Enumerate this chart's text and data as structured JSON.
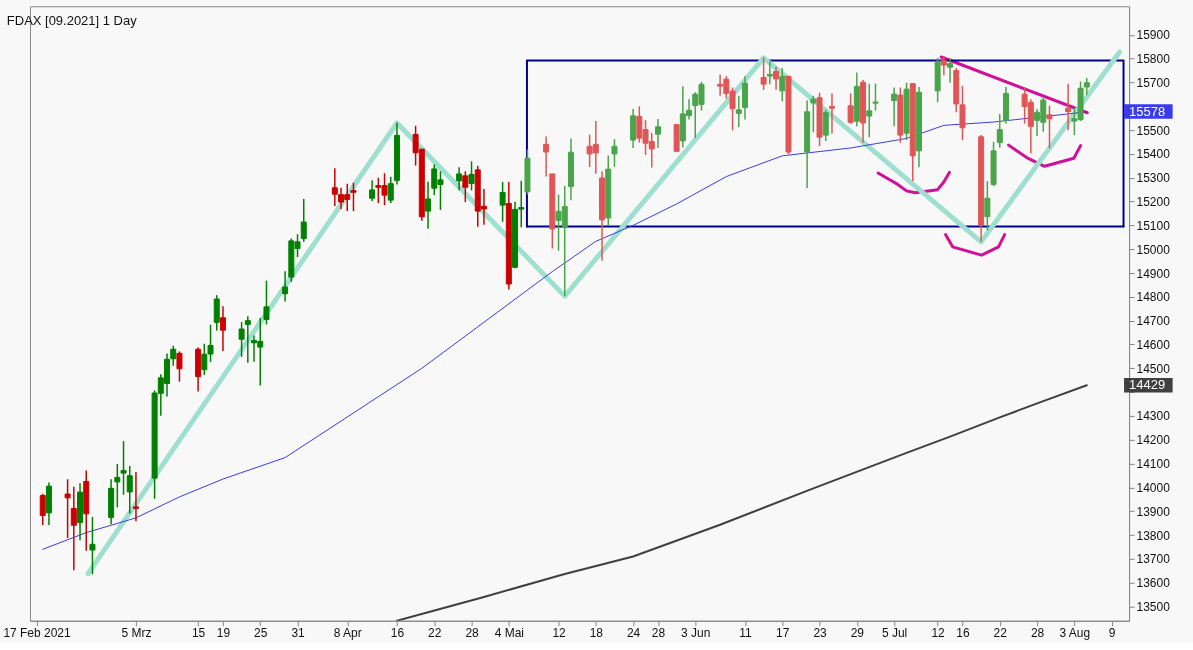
{
  "chart_data": {
    "type": "candlestick",
    "title": "FDAX [09.2021] 1 Day",
    "x": [
      "2021-02-18",
      "2021-02-19",
      "2021-02-22",
      "2021-02-23",
      "2021-02-24",
      "2021-02-25",
      "2021-02-26",
      "2021-03-01",
      "2021-03-02",
      "2021-03-03",
      "2021-03-04",
      "2021-03-05",
      "2021-03-08",
      "2021-03-09",
      "2021-03-10",
      "2021-03-11",
      "2021-03-12",
      "2021-03-15",
      "2021-03-16",
      "2021-03-17",
      "2021-03-18",
      "2021-03-19",
      "2021-03-22",
      "2021-03-23",
      "2021-03-24",
      "2021-03-25",
      "2021-03-26",
      "2021-03-29",
      "2021-03-30",
      "2021-03-31",
      "2021-04-01",
      "2021-04-06",
      "2021-04-07",
      "2021-04-08",
      "2021-04-09",
      "2021-04-12",
      "2021-04-13",
      "2021-04-14",
      "2021-04-15",
      "2021-04-16",
      "2021-04-19",
      "2021-04-20",
      "2021-04-21",
      "2021-04-22",
      "2021-04-23",
      "2021-04-26",
      "2021-04-27",
      "2021-04-28",
      "2021-04-29",
      "2021-04-30",
      "2021-05-03",
      "2021-05-04",
      "2021-05-05",
      "2021-05-06",
      "2021-05-07",
      "2021-05-10",
      "2021-05-11",
      "2021-05-12",
      "2021-05-13",
      "2021-05-14",
      "2021-05-17",
      "2021-05-18",
      "2021-05-19",
      "2021-05-20",
      "2021-05-21",
      "2021-05-24",
      "2021-05-25",
      "2021-05-26",
      "2021-05-27",
      "2021-05-28",
      "2021-05-31",
      "2021-06-01",
      "2021-06-02",
      "2021-06-03",
      "2021-06-04",
      "2021-06-07",
      "2021-06-08",
      "2021-06-09",
      "2021-06-10",
      "2021-06-11",
      "2021-06-14",
      "2021-06-15",
      "2021-06-16",
      "2021-06-17",
      "2021-06-18",
      "2021-06-21",
      "2021-06-22",
      "2021-06-23",
      "2021-06-24",
      "2021-06-25",
      "2021-06-28",
      "2021-06-29",
      "2021-06-30",
      "2021-07-01",
      "2021-07-02",
      "2021-07-05",
      "2021-07-06",
      "2021-07-07",
      "2021-07-08",
      "2021-07-09",
      "2021-07-12",
      "2021-07-13",
      "2021-07-14",
      "2021-07-15",
      "2021-07-16",
      "2021-07-19",
      "2021-07-20",
      "2021-07-21",
      "2021-07-22",
      "2021-07-23",
      "2021-07-26",
      "2021-07-27",
      "2021-07-28",
      "2021-07-29",
      "2021-07-30",
      "2021-08-02",
      "2021-08-03",
      "2021-08-04",
      "2021-08-05"
    ],
    "ohlc": [
      [
        13966,
        13973,
        13842,
        13882
      ],
      [
        13893,
        14020,
        13842,
        14005
      ],
      [
        13972,
        14034,
        13787,
        13956
      ],
      [
        13911,
        14003,
        13652,
        13841
      ],
      [
        13852,
        14017,
        13778,
        13980
      ],
      [
        14025,
        14071,
        13734,
        13889
      ],
      [
        13737,
        13876,
        13635,
        13761
      ],
      [
        13874,
        14034,
        13845,
        13996
      ],
      [
        14023,
        14098,
        13916,
        14042
      ],
      [
        14060,
        14194,
        13969,
        14071
      ],
      [
        13981,
        14090,
        13890,
        14049
      ],
      [
        13918,
        14065,
        13858,
        13912
      ],
      [
        14039,
        14407,
        13952,
        14396
      ],
      [
        14395,
        14475,
        14301,
        14460
      ],
      [
        14436,
        14562,
        14382,
        14538
      ],
      [
        14540,
        14595,
        14511,
        14580
      ],
      [
        14563,
        14571,
        14444,
        14498
      ],
      [
        14580,
        14587,
        14403,
        14465
      ],
      [
        14494,
        14603,
        14472,
        14559
      ],
      [
        14560,
        14683,
        14527,
        14596
      ],
      [
        14693,
        14807,
        14658,
        14791
      ],
      [
        14712,
        14760,
        14573,
        14660
      ],
      [
        14622,
        14694,
        14548,
        14665
      ],
      [
        14684,
        14719,
        14523,
        14700
      ],
      [
        14607,
        14638,
        14527,
        14617
      ],
      [
        14589,
        14711,
        14428,
        14613
      ],
      [
        14705,
        14868,
        14684,
        14758
      ],
      [
        14813,
        14907,
        14780,
        14841
      ],
      [
        14883,
        15045,
        14863,
        15035
      ],
      [
        15003,
        15063,
        14967,
        15031
      ],
      [
        15045,
        15211,
        15031,
        15114
      ],
      [
        15258,
        15340,
        15181,
        15231
      ],
      [
        15229,
        15258,
        15169,
        15198
      ],
      [
        15229,
        15275,
        15160,
        15209
      ],
      [
        15246,
        15279,
        15160,
        15239
      ],
      [
        15214,
        15290,
        15202,
        15249
      ],
      [
        15267,
        15300,
        15194,
        15260
      ],
      [
        15267,
        15319,
        15185,
        15227
      ],
      [
        15206,
        15304,
        15194,
        15275
      ],
      [
        15289,
        15531,
        15272,
        15478
      ],
      [
        15482,
        15518,
        15351,
        15405
      ],
      [
        15420,
        15420,
        15119,
        15136
      ],
      [
        15160,
        15283,
        15086,
        15211
      ],
      [
        15256,
        15356,
        15227,
        15337
      ],
      [
        15272,
        15327,
        15165,
        15291
      ],
      [
        15287,
        15344,
        15247,
        15316
      ],
      [
        15308,
        15327,
        15198,
        15260
      ],
      [
        15276,
        15369,
        15247,
        15314
      ],
      [
        15333,
        15349,
        15094,
        15160
      ],
      [
        15180,
        15253,
        15103,
        15169
      ],
      [
        15185,
        15282,
        15115,
        15238
      ],
      [
        15192,
        15282,
        14831,
        14854
      ],
      [
        14924,
        15199,
        14920,
        15167
      ],
      [
        15168,
        15287,
        15092,
        15175
      ],
      [
        15241,
        15419,
        15230,
        15382
      ],
      [
        15440,
        15473,
        15305,
        15408
      ],
      [
        15316,
        15316,
        15003,
        15085
      ],
      [
        15121,
        15229,
        14994,
        15159
      ],
      [
        15091,
        15265,
        14803,
        15179
      ],
      [
        15263,
        15465,
        15205,
        15407
      ],
      [
        15432,
        15481,
        15345,
        15400
      ],
      [
        15440,
        15538,
        15317,
        15404
      ],
      [
        15299,
        15327,
        14953,
        15123
      ],
      [
        15131,
        15393,
        15099,
        15336
      ],
      [
        15400,
        15462,
        15346,
        15432
      ],
      [
        15458,
        15589,
        15425,
        15560
      ],
      [
        15557,
        15600,
        15448,
        15466
      ],
      [
        15502,
        15542,
        15396,
        15445
      ],
      [
        15452,
        15488,
        15343,
        15421
      ],
      [
        15483,
        15547,
        15425,
        15514
      ],
      [
        15523,
        15525,
        15408,
        15411
      ],
      [
        15455,
        15684,
        15427,
        15568
      ],
      [
        15561,
        15630,
        15545,
        15583
      ],
      [
        15603,
        15659,
        15467,
        15651
      ],
      [
        15608,
        15703,
        15582,
        15692
      ],
      [
        15692,
        15734,
        15644,
        15685
      ],
      [
        15714,
        15727,
        15633,
        15654
      ],
      [
        15664,
        15679,
        15499,
        15590
      ],
      [
        15570,
        15644,
        15513,
        15585
      ],
      [
        15595,
        15726,
        15545,
        15697
      ],
      [
        15721,
        15806,
        15669,
        15693
      ],
      [
        15727,
        15789,
        15693,
        15734
      ],
      [
        15746,
        15766,
        15669,
        15715
      ],
      [
        15665,
        15761,
        15621,
        15726
      ],
      [
        15726,
        15726,
        15399,
        15408
      ],
      [
        15408,
        15624,
        15257,
        15577
      ],
      [
        15614,
        15644,
        15491,
        15630
      ],
      [
        15636,
        15657,
        15433,
        15470
      ],
      [
        15479,
        15586,
        15454,
        15573
      ],
      [
        15599,
        15654,
        15486,
        15592
      ],
      [
        15602,
        15654,
        15527,
        15533
      ],
      [
        15537,
        15742,
        15516,
        15684
      ],
      [
        15701,
        15710,
        15447,
        15530
      ],
      [
        15559,
        15695,
        15470,
        15581
      ],
      [
        15613,
        15695,
        15582,
        15618
      ],
      [
        15624,
        15679,
        15516,
        15651
      ],
      [
        15647,
        15679,
        15447,
        15479
      ],
      [
        15487,
        15699,
        15458,
        15672
      ],
      [
        15695,
        15695,
        15286,
        15392
      ],
      [
        15413,
        15681,
        15344,
        15659
      ],
      [
        15665,
        15803,
        15617,
        15789
      ],
      [
        15793,
        15810,
        15730,
        15773
      ],
      [
        15764,
        15803,
        15699,
        15779
      ],
      [
        15750,
        15761,
        15575,
        15610
      ],
      [
        15606,
        15686,
        15458,
        15510
      ],
      [
        15472,
        15479,
        15031,
        15100
      ],
      [
        15137,
        15286,
        15079,
        15214
      ],
      [
        15272,
        15451,
        15265,
        15413
      ],
      [
        15448,
        15568,
        15426,
        15502
      ],
      [
        15541,
        15681,
        15527,
        15654
      ],
      [
        15651,
        15681,
        15527,
        15599
      ],
      [
        15617,
        15630,
        15403,
        15516
      ],
      [
        15541,
        15589,
        15475,
        15575
      ],
      [
        15533,
        15637,
        15493,
        15626
      ],
      [
        15564,
        15603,
        15424,
        15548
      ],
      [
        15592,
        15695,
        15499,
        15578
      ],
      [
        15538,
        15593,
        15479,
        15548
      ],
      [
        15544,
        15704,
        15538,
        15676
      ],
      [
        15681,
        15719,
        15647,
        15699
      ]
    ],
    "colors": [
      "#cc0000",
      "#008000",
      "#cc0000",
      "#cc0000",
      "#008000",
      "#cc0000",
      "#008000",
      "#008000",
      "#008000",
      "#008000",
      "#008000",
      "#cc0000",
      "#008000",
      "#008000",
      "#008000",
      "#008000",
      "#cc0000",
      "#cc0000",
      "#008000",
      "#008000",
      "#008000",
      "#cc0000",
      "#008000",
      "#008000",
      "#008000",
      "#008000",
      "#008000",
      "#008000",
      "#008000",
      "#008000",
      "#008000",
      "#cc0000",
      "#cc0000",
      "#cc0000",
      "#cc0000",
      "#008000",
      "#cc0000",
      "#cc0000",
      "#008000",
      "#008000",
      "#cc0000",
      "#cc0000",
      "#008000",
      "#008000",
      "#008000",
      "#008000",
      "#cc0000",
      "#008000",
      "#cc0000",
      "#cc0000",
      "#008000",
      "#cc0000",
      "#008000",
      "#008000",
      "#4aa54a",
      "#e05555",
      "#e05555",
      "#4aa54a",
      "#4aa54a",
      "#4aa54a",
      "#e05555",
      "#e05555",
      "#e05555",
      "#4aa54a",
      "#4aa54a",
      "#4aa54a",
      "#e05555",
      "#e05555",
      "#e05555",
      "#4aa54a",
      "#e05555",
      "#4aa54a",
      "#4aa54a",
      "#4aa54a",
      "#4aa54a",
      "#e05555",
      "#e05555",
      "#e05555",
      "#4aa54a",
      "#4aa54a",
      "#e05555",
      "#4aa54a",
      "#e05555",
      "#4aa54a",
      "#e05555",
      "#4aa54a",
      "#4aa54a",
      "#e05555",
      "#4aa54a",
      "#e05555",
      "#e05555",
      "#4aa54a",
      "#e05555",
      "#4aa54a",
      "#4aa54a",
      "#4aa54a",
      "#e05555",
      "#4aa54a",
      "#e05555",
      "#4aa54a",
      "#4aa54a",
      "#e05555",
      "#4aa54a",
      "#e05555",
      "#e05555",
      "#e05555",
      "#4aa54a",
      "#4aa54a",
      "#4aa54a",
      "#4aa54a",
      "#e05555",
      "#e05555",
      "#4aa54a",
      "#4aa54a",
      "#e05555",
      "#e05555",
      "#4aa54a",
      "#4aa54a",
      "#4aa54a"
    ],
    "series": [
      {
        "type": "line",
        "color": "#3a3af0",
        "x": [
          "2021-02-18",
          "2021-02-25",
          "2021-03-05",
          "2021-03-12",
          "2021-03-19",
          "2021-03-29",
          "2021-04-20",
          "2021-05-05",
          "2021-05-11",
          "2021-05-18",
          "2021-05-24",
          "2021-05-31",
          "2021-06-08",
          "2021-06-17",
          "2021-06-28",
          "2021-07-07",
          "2021-07-13",
          "2021-07-21",
          "2021-08-02",
          "2021-08-05"
        ],
        "values": [
          13740,
          13810,
          13872,
          13960,
          14035,
          14125,
          14500,
          14790,
          14906,
          15033,
          15100,
          15190,
          15305,
          15392,
          15425,
          15465,
          15520,
          15534,
          15568,
          15578
        ]
      },
      {
        "type": "line",
        "color": "#404040",
        "x": [
          "2021-04-16",
          "2021-04-30",
          "2021-05-13",
          "2021-05-24",
          "2021-06-07",
          "2021-06-22",
          "2021-07-07",
          "2021-07-14",
          "2021-07-22",
          "2021-07-29",
          "2021-08-05"
        ],
        "values": [
          13440,
          13540,
          13636,
          13710,
          13843,
          13996,
          14145,
          14213,
          14294,
          14362,
          14429
        ]
      },
      {
        "type": "line",
        "color": "#9fdfd0",
        "x": [
          "2021-02-25T07:00",
          "2021-04-16",
          "2021-05-13",
          "2021-06-14",
          "2021-07-19",
          "2021-08-10T07:00"
        ],
        "values": [
          13638,
          15530,
          14803,
          15803,
          15031,
          15828
        ]
      },
      {
        "type": "line",
        "color": "#00008b",
        "x": [
          "2021-05-06T22:00",
          "2021-05-06T22:01",
          "2021-08-10T21:59",
          "2021-08-10T22:00"
        ],
        "values": [
          15095,
          15792,
          15792,
          15095
        ]
      },
      {
        "type": "line",
        "color": "#00008b",
        "x": [
          "2021-05-06T22:00",
          "2021-08-10T22:00"
        ],
        "values": [
          15095,
          15095
        ]
      },
      {
        "type": "line",
        "color": "#d0109a",
        "x": [
          "2021-07-12T14:00",
          "2021-08-05T02:00"
        ],
        "values": [
          15807,
          15573
        ]
      },
      {
        "type": "line",
        "color": "#d0109a",
        "x": [
          "2021-07-02T10:00",
          "2021-07-05T14:00",
          "2021-07-07",
          "2021-07-08T10:00",
          "2021-07-12",
          "2021-07-13",
          "2021-07-13T22:00"
        ],
        "values": [
          15320,
          15272,
          15245,
          15237,
          15250,
          15282,
          15323
        ]
      },
      {
        "type": "line",
        "color": "#d0109a",
        "x": [
          "2021-07-13T07:00",
          "2021-07-14T10:00",
          "2021-07-19T02:00",
          "2021-07-21T19:00",
          "2021-07-22T19:00"
        ],
        "values": [
          15061,
          15010,
          14975,
          15010,
          15061
        ]
      },
      {
        "type": "line",
        "color": "#d0109a",
        "x": [
          "2021-07-23T10:00",
          "2021-07-26T12:00",
          "2021-07-29T05:00",
          "2021-08-02T22:00",
          "2021-08-04"
        ],
        "values": [
          15437,
          15382,
          15348,
          15382,
          15435
        ]
      }
    ],
    "annotations": [
      "15578",
      "14429"
    ],
    "xlim": [
      "2021-02-16T18:00",
      "2021-08-11"
    ],
    "ylim": [
      13440,
      16020
    ],
    "xticks": [
      {
        "value": "2021-02-17",
        "label": "17 Feb 2021"
      },
      {
        "value": "2021-03-05",
        "label": "5 Mrz"
      },
      {
        "value": "2021-03-15",
        "label": "15"
      },
      {
        "value": "2021-03-19",
        "label": "19"
      },
      {
        "value": "2021-03-25",
        "label": "25"
      },
      {
        "value": "2021-03-31",
        "label": "31"
      },
      {
        "value": "2021-04-08",
        "label": "8 Apr"
      },
      {
        "value": "2021-04-16",
        "label": "16"
      },
      {
        "value": "2021-04-22",
        "label": "22"
      },
      {
        "value": "2021-04-28",
        "label": "28"
      },
      {
        "value": "2021-05-04",
        "label": "4 Mai"
      },
      {
        "value": "2021-05-12",
        "label": "12"
      },
      {
        "value": "2021-05-18",
        "label": "18"
      },
      {
        "value": "2021-05-24",
        "label": "24"
      },
      {
        "value": "2021-05-28",
        "label": "28"
      },
      {
        "value": "2021-06-03",
        "label": "3 Jun"
      },
      {
        "value": "2021-06-11",
        "label": "11"
      },
      {
        "value": "2021-06-17",
        "label": "17"
      },
      {
        "value": "2021-06-23",
        "label": "23"
      },
      {
        "value": "2021-06-29",
        "label": "29"
      },
      {
        "value": "2021-07-05",
        "label": "5 Jul"
      },
      {
        "value": "2021-07-12",
        "label": "12"
      },
      {
        "value": "2021-07-16",
        "label": "16"
      },
      {
        "value": "2021-07-22",
        "label": "22"
      },
      {
        "value": "2021-07-28",
        "label": "28"
      },
      {
        "value": "2021-08-03",
        "label": "3 Aug"
      },
      {
        "value": "2021-08-09",
        "label": "9"
      }
    ],
    "yticks": [
      13500,
      13600,
      13700,
      13800,
      13900,
      14000,
      14100,
      14200,
      14300,
      {
        "value": 14400,
        "label": null
      },
      14500,
      14600,
      14700,
      14800,
      14900,
      15000,
      15100,
      15200,
      15300,
      15400,
      15500,
      {
        "value": 15600,
        "label": null
      },
      15700,
      15800,
      15900
    ]
  }
}
